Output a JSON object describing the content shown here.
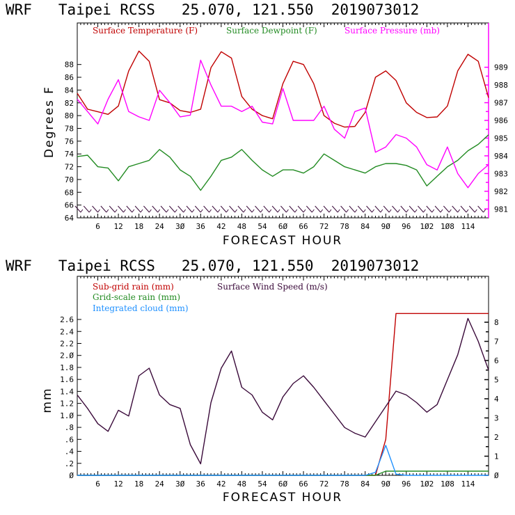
{
  "chart_data": [
    {
      "type": "line",
      "title": "WRF   Taipei RCSS   25.070, 121.550  2019073012",
      "xlabel": "FORECAST HOUR",
      "ylabel": "Degrees F",
      "xlim": [
        0,
        120
      ],
      "ylim": [
        64,
        94.5
      ],
      "y2lim": [
        980.5,
        991.5
      ],
      "x_ticks": [
        6,
        12,
        18,
        24,
        30,
        36,
        42,
        48,
        54,
        60,
        66,
        72,
        78,
        84,
        90,
        96,
        102,
        108,
        114
      ],
      "x_tick_labels": [
        "6",
        "12",
        "18",
        "24",
        "3Ø",
        "36",
        "42",
        "48",
        "54",
        "6Ø",
        "66",
        "72",
        "78",
        "84",
        "9Ø",
        "96",
        "1Ø2",
        "1Ø8",
        "114"
      ],
      "y_ticks": [
        64,
        66,
        68,
        70,
        72,
        74,
        76,
        78,
        80,
        82,
        84,
        86,
        88
      ],
      "y2_ticks": [
        981,
        982,
        983,
        984,
        985,
        986,
        987,
        988,
        989
      ],
      "y2label": "",
      "legend_position": "top",
      "grid": false,
      "x": [
        0,
        3,
        6,
        9,
        12,
        15,
        18,
        21,
        24,
        27,
        30,
        33,
        36,
        39,
        42,
        45,
        48,
        51,
        54,
        57,
        60,
        63,
        66,
        69,
        72,
        75,
        78,
        81,
        84,
        87,
        90,
        93,
        96,
        99,
        102,
        105,
        108,
        111,
        114,
        117,
        120
      ],
      "series": [
        {
          "name": "Surface Temperature (F)",
          "color": "#c00000",
          "axis": "left",
          "values": [
            83.5,
            81.0,
            80.6,
            80.2,
            81.5,
            87.0,
            90.1,
            88.5,
            82.5,
            82.0,
            80.8,
            80.5,
            81.0,
            87.5,
            90.0,
            89.0,
            83.0,
            81.0,
            80.0,
            79.5,
            85.0,
            88.5,
            88.0,
            85.0,
            80.0,
            78.8,
            78.2,
            78.3,
            80.5,
            86.0,
            87.0,
            85.5,
            82.0,
            80.5,
            79.7,
            79.8,
            81.5,
            87.0,
            89.6,
            88.5,
            82.8
          ]
        },
        {
          "name": "Surface Dewpoint (F)",
          "color": "#228b22",
          "axis": "left",
          "values": [
            73.6,
            73.8,
            72.0,
            71.8,
            69.8,
            72.0,
            72.5,
            73.0,
            74.7,
            73.5,
            71.5,
            70.5,
            68.3,
            70.5,
            73.0,
            73.5,
            74.7,
            73.0,
            71.5,
            70.5,
            71.5,
            71.5,
            71.0,
            72.0,
            74.0,
            73.0,
            72.0,
            71.5,
            71.0,
            72.0,
            72.5,
            72.5,
            72.2,
            71.5,
            69.0,
            70.5,
            72.0,
            73.0,
            74.5,
            75.5,
            77.0
          ]
        },
        {
          "name": "Surface Pressure (mb)",
          "color": "#ff00ff",
          "axis": "right",
          "values": [
            987.2,
            986.5,
            985.8,
            987.2,
            988.3,
            986.5,
            986.2,
            986.0,
            987.7,
            987.0,
            986.2,
            986.3,
            989.4,
            988.0,
            986.8,
            986.8,
            986.5,
            986.8,
            985.9,
            985.8,
            987.8,
            986.0,
            986.0,
            986.0,
            986.8,
            985.5,
            985.0,
            986.5,
            986.7,
            984.2,
            984.5,
            985.2,
            985.0,
            984.5,
            983.5,
            983.2,
            984.5,
            983.0,
            982.2,
            983.0,
            983.5
          ]
        }
      ],
      "wind_barbs": "row of purple wind barbs along bottom of plot from hour 0 to 120"
    },
    {
      "type": "line",
      "title": "WRF   Taipei RCSS   25.070, 121.550  2019073012",
      "xlabel": "FORECAST HOUR",
      "ylabel": "mm",
      "xlim": [
        0,
        120
      ],
      "ylim": [
        0,
        3.32
      ],
      "y2lim": [
        0,
        10.4
      ],
      "x_ticks": [
        6,
        12,
        18,
        24,
        30,
        36,
        42,
        48,
        54,
        60,
        66,
        72,
        78,
        84,
        90,
        96,
        102,
        108,
        114
      ],
      "x_tick_labels": [
        "6",
        "12",
        "18",
        "24",
        "3Ø",
        "36",
        "42",
        "48",
        "54",
        "6Ø",
        "66",
        "72",
        "78",
        "84",
        "9Ø",
        "96",
        "1Ø2",
        "1Ø8",
        "114"
      ],
      "y_ticks": [
        0,
        0.2,
        0.4,
        0.6,
        0.8,
        1.0,
        1.2,
        1.4,
        1.6,
        1.8,
        2.0,
        2.2,
        2.4,
        2.6
      ],
      "y_tick_labels": [
        "Ø",
        ".2",
        ".4",
        ".6",
        ".8",
        "1.Ø",
        "1.2",
        "1.4",
        "1.6",
        "1.8",
        "2.Ø",
        "2.2",
        "2.4",
        "2.6"
      ],
      "y2_ticks": [
        0,
        1,
        2,
        3,
        4,
        5,
        6,
        7,
        8
      ],
      "y2_tick_labels": [
        "Ø",
        "1",
        "2",
        "3",
        "4",
        "5",
        "6",
        "7",
        "8"
      ],
      "legend_position": "top-left",
      "grid": false,
      "x": [
        0,
        3,
        6,
        9,
        12,
        15,
        18,
        21,
        24,
        27,
        30,
        33,
        36,
        39,
        42,
        45,
        48,
        51,
        54,
        57,
        60,
        63,
        66,
        69,
        72,
        75,
        78,
        81,
        84,
        87,
        90,
        93,
        96,
        99,
        102,
        105,
        108,
        111,
        114,
        117,
        120
      ],
      "series": [
        {
          "name": "Sub-grid rain (mm)",
          "color": "#c00000",
          "axis": "left",
          "values": [
            0,
            0,
            0,
            0,
            0,
            0,
            0,
            0,
            0,
            0,
            0,
            0,
            0,
            0,
            0,
            0,
            0,
            0,
            0,
            0,
            0,
            0,
            0,
            0,
            0,
            0,
            0,
            0,
            0,
            0,
            0.6,
            2.7,
            2.7,
            2.7,
            2.7,
            2.7,
            2.7,
            2.7,
            2.7,
            2.7,
            2.7
          ]
        },
        {
          "name": "Grid-scale rain (mm)",
          "color": "#228b22",
          "axis": "left",
          "values": [
            0,
            0,
            0,
            0,
            0,
            0,
            0,
            0,
            0,
            0,
            0,
            0,
            0,
            0,
            0,
            0,
            0,
            0,
            0,
            0,
            0,
            0,
            0,
            0,
            0,
            0,
            0,
            0,
            0,
            0,
            0.07,
            0.07,
            0.07,
            0.07,
            0.07,
            0.07,
            0.07,
            0.07,
            0.07,
            0.07,
            0.07
          ]
        },
        {
          "name": "Integrated cloud (mm)",
          "color": "#1e90ff",
          "axis": "left",
          "values": [
            0,
            0,
            0,
            0,
            0,
            0,
            0,
            0,
            0,
            0,
            0,
            0,
            0,
            0,
            0,
            0,
            0,
            0,
            0,
            0,
            0,
            0,
            0,
            0,
            0,
            0,
            0,
            0,
            0,
            0.05,
            0.5,
            0.02,
            0,
            0,
            0,
            0,
            0,
            0,
            0,
            0,
            0
          ]
        },
        {
          "name": "Surface Wind Speed (m/s)",
          "color": "#3a0a3a",
          "axis": "right",
          "values": [
            4.2,
            3.5,
            2.7,
            2.3,
            3.4,
            3.1,
            5.2,
            5.6,
            4.2,
            3.7,
            3.5,
            1.6,
            0.6,
            3.8,
            5.6,
            6.5,
            4.6,
            4.2,
            3.3,
            2.9,
            4.1,
            4.8,
            5.2,
            4.6,
            3.9,
            3.2,
            2.5,
            2.2,
            2.0,
            2.8,
            3.6,
            4.4,
            4.2,
            3.8,
            3.3,
            3.7,
            5.0,
            6.3,
            8.2,
            7.0,
            5.5
          ]
        }
      ]
    }
  ],
  "top_chart": {
    "title": "WRF   Taipei RCSS   25.070, 121.550  2019073012",
    "ylabel": "Degrees F",
    "xlabel": "FORECAST HOUR",
    "legend": [
      "Surface Temperature (F)",
      "Surface Dewpoint (F)",
      "Surface Pressure (mb)"
    ]
  },
  "bottom_chart": {
    "title": "WRF   Taipei RCSS   25.070, 121.550  2019073012",
    "ylabel": "mm",
    "xlabel": "FORECAST HOUR",
    "legend": [
      "Sub-grid rain (mm)",
      "Surface Wind Speed (m/s)",
      "Grid-scale rain (mm)",
      "Integrated cloud (mm)"
    ]
  },
  "colors": {
    "temperature": "#c00000",
    "dewpoint": "#228b22",
    "pressure": "#ff00ff",
    "wind": "#3a0a3a",
    "cloud": "#1e90ff",
    "axis_right_top": "#ff00ff"
  }
}
